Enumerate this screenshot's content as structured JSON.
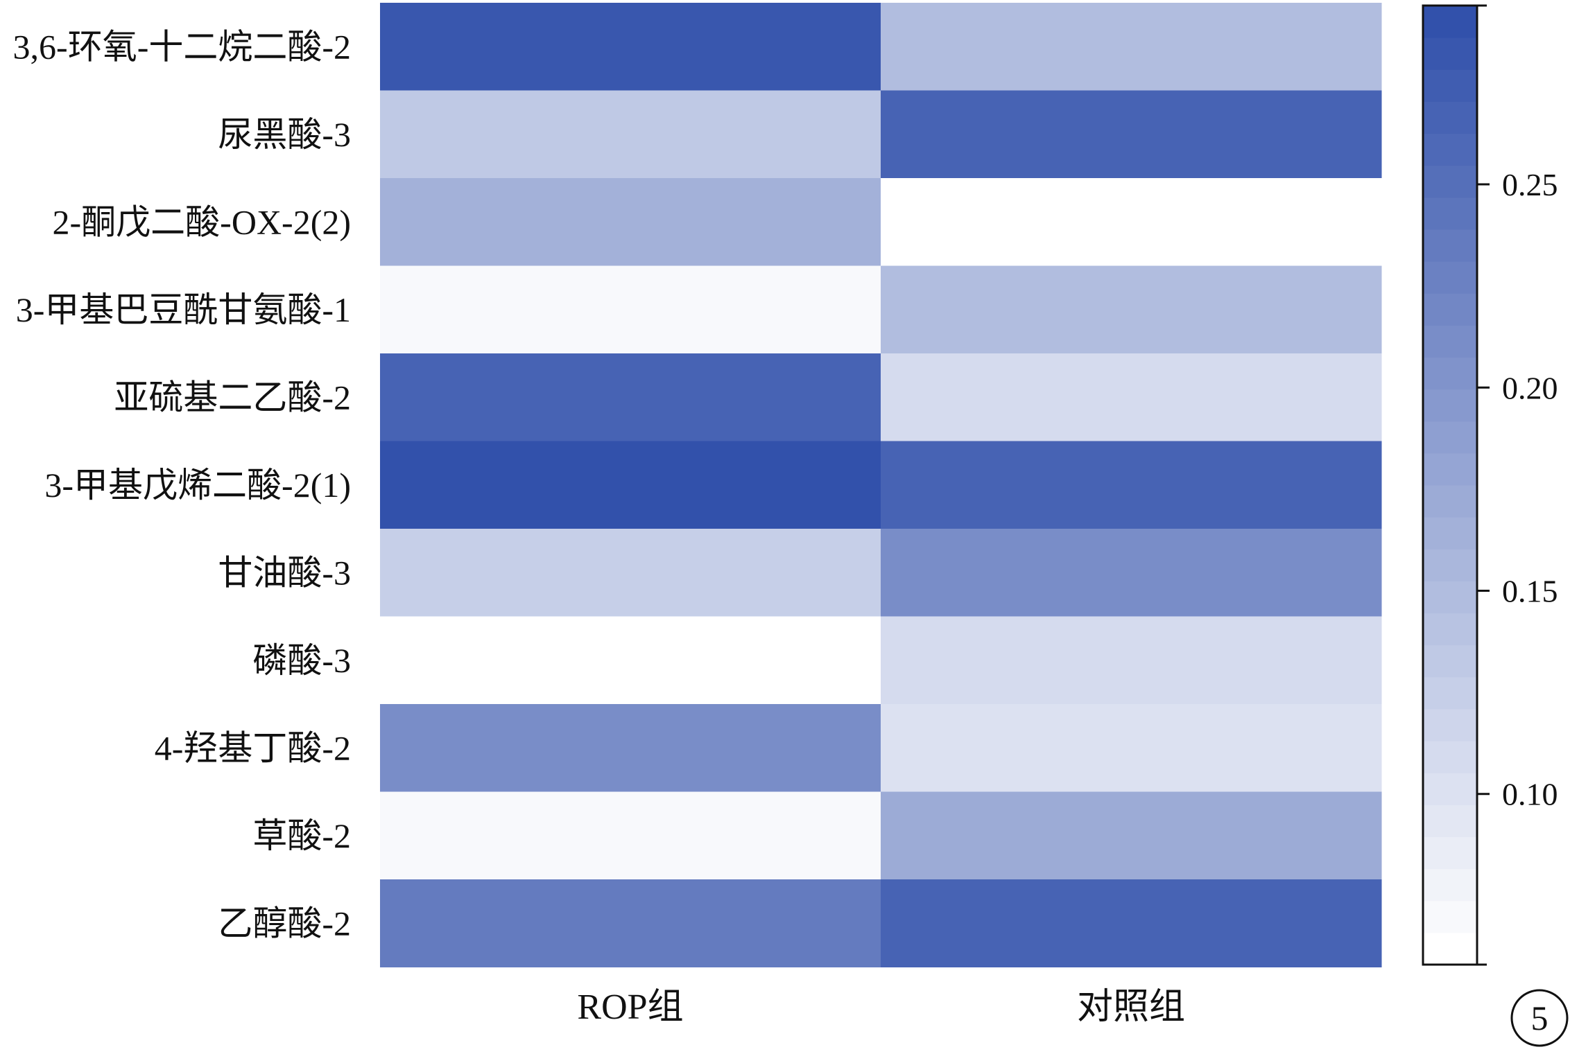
{
  "chart_data": {
    "type": "heatmap",
    "title": "",
    "xlabel": "",
    "ylabel": "",
    "columns": [
      "ROP组",
      "对照组"
    ],
    "rows": [
      "3,6-环氧-十二烷二酸-2",
      "尿黑酸-3",
      "2-酮戊二酸-OX-2(2)",
      "3-甲基巴豆酰甘氨酸-1",
      "亚硫基二乙酸-2",
      "3-甲基戊烯二酸-2(1)",
      "甘油酸-3",
      "磷酸-3",
      "4-羟基丁酸-2",
      "草酸-2",
      "乙醇酸-2"
    ],
    "values": [
      [
        0.275,
        0.145
      ],
      [
        0.125,
        0.262
      ],
      [
        0.162,
        0.058
      ],
      [
        0.068,
        0.145
      ],
      [
        0.262,
        0.108
      ],
      [
        0.288,
        0.262
      ],
      [
        0.12,
        0.205
      ],
      [
        0.058,
        0.108
      ],
      [
        0.205,
        0.1
      ],
      [
        0.068,
        0.17
      ],
      [
        0.232,
        0.262
      ]
    ],
    "colorbar": {
      "vmin": 0.058,
      "vmax": 0.294,
      "ticks": [
        0.1,
        0.15,
        0.2,
        0.25
      ],
      "tick_labels": [
        "0.10",
        "0.15",
        "0.20",
        "0.25"
      ],
      "low_color": "#ffffff",
      "high_color": "#2b4ba8",
      "steps": 30
    }
  },
  "figure_badge": "5"
}
